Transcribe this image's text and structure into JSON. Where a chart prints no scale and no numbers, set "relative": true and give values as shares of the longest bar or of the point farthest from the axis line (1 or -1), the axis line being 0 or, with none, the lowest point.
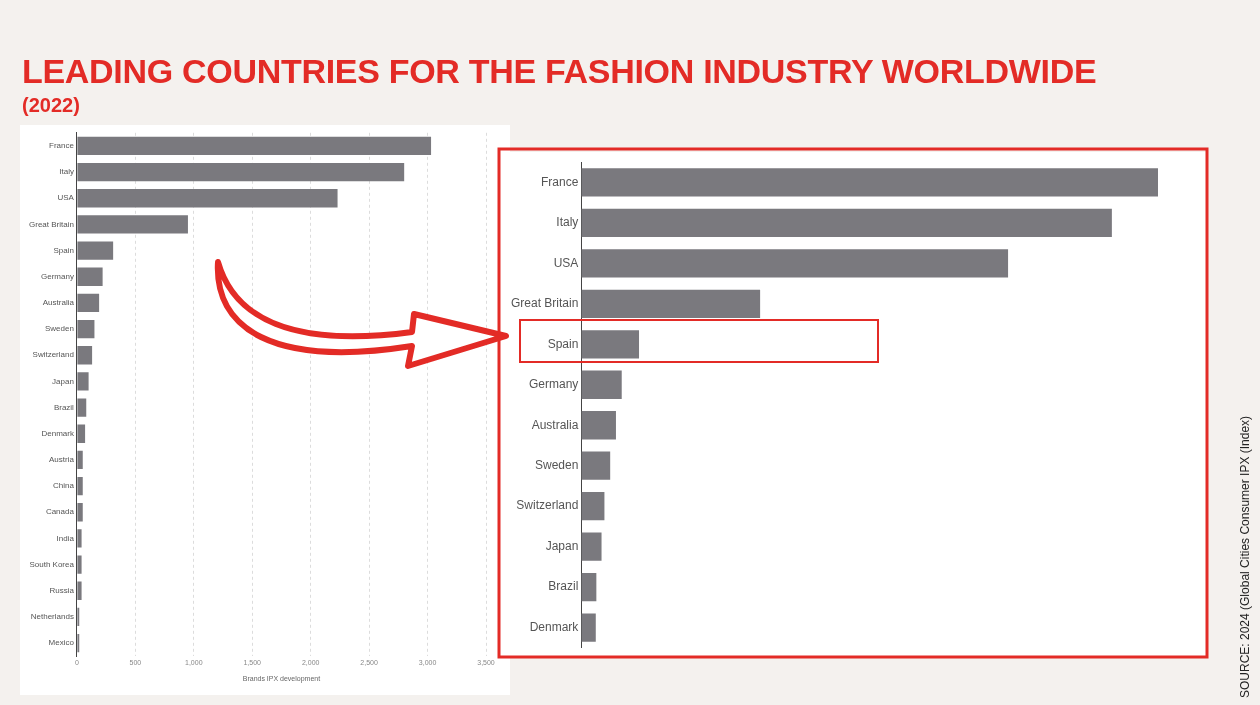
{
  "chart_data": [
    {
      "type": "bar",
      "orientation": "horizontal",
      "title": "LEADING COUNTRIES FOR THE FASHION INDUSTRY WORLDWIDE",
      "subtitle": "(2022)",
      "xlabel": "Brands IPX development",
      "categories": [
        "France",
        "Italy",
        "USA",
        "Great Britain",
        "Spain",
        "Germany",
        "Australia",
        "Sweden",
        "Switzerland",
        "Japan",
        "Brazil",
        "Denmark",
        "Austria",
        "China",
        "Canada",
        "India",
        "South Korea",
        "Russia",
        "Netherlands",
        "Mexico"
      ],
      "values": [
        3030,
        2800,
        2230,
        950,
        310,
        220,
        190,
        150,
        130,
        100,
        80,
        70,
        50,
        50,
        50,
        40,
        40,
        40,
        20,
        20
      ],
      "color": "#7a797e",
      "xlim": [
        0,
        3500
      ],
      "xticks": [
        0,
        {
          "value": 500,
          "label": "500"
        },
        {
          "value": 1000,
          "label": "1,000"
        },
        {
          "value": 1500,
          "label": "1,500"
        },
        {
          "value": 2000,
          "label": "2,000"
        },
        {
          "value": 2500,
          "label": "2,500"
        },
        {
          "value": 3000,
          "label": "3,000"
        },
        {
          "value": 3500,
          "label": "3,500"
        }
      ],
      "grid": "x",
      "annotations": [
        "SOURCE: 2024 (Global Cities Consumer IPX (Index)"
      ]
    },
    {
      "type": "bar",
      "orientation": "horizontal",
      "relative": true,
      "categories": [
        "France",
        "Italy",
        "USA",
        "Great Britain",
        "Spain",
        "Germany",
        "Australia",
        "Sweden",
        "Switzerland",
        "Japan",
        "Brazil",
        "Denmark"
      ],
      "values": [
        1,
        0.92,
        0.74,
        0.31,
        0.1,
        0.07,
        0.06,
        0.05,
        0.04,
        0.035,
        0.026,
        0.025
      ],
      "color": "#7a797e"
    }
  ]
}
